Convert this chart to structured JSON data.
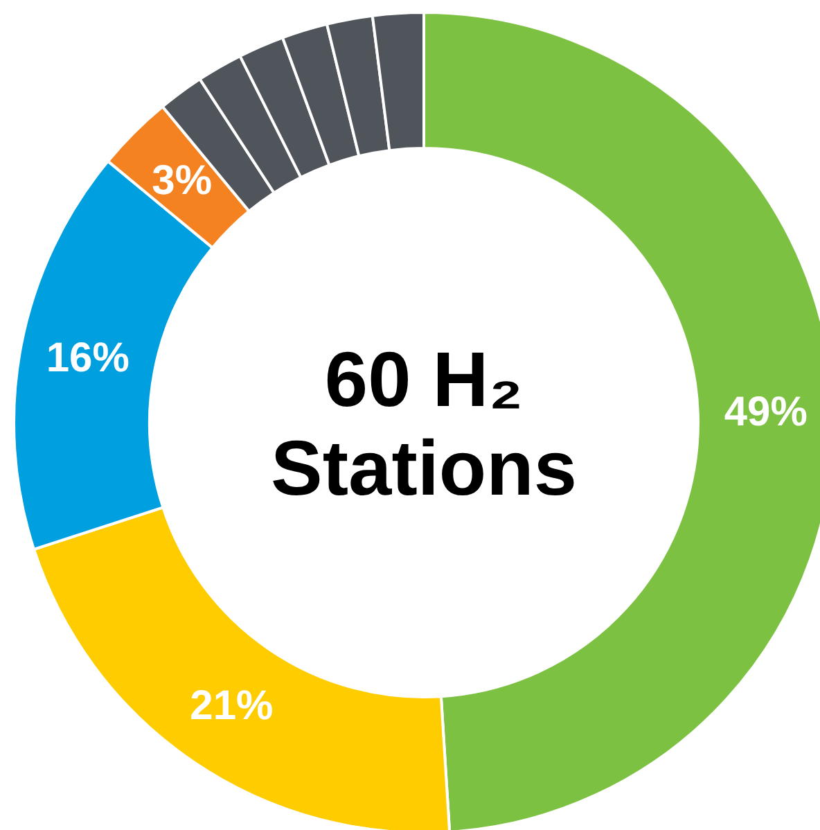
{
  "chart_data": {
    "type": "donut",
    "title": "60 H₂ Stations",
    "categories": [
      null,
      null,
      null,
      null,
      null,
      null,
      null,
      null,
      null,
      null
    ],
    "values": [
      49,
      21,
      16,
      3,
      1.8,
      1.8,
      1.8,
      1.8,
      1.8,
      2
    ],
    "colors": [
      "#7dc142",
      "#ffcc00",
      "#00a0e0",
      "#f58220",
      "#50555c",
      "#50555c",
      "#50555c",
      "#50555c",
      "#50555c",
      "#50555c"
    ],
    "value_labels": [
      "49%",
      "21%",
      "16%",
      "3%",
      null,
      null,
      null,
      null,
      null,
      null
    ]
  }
}
